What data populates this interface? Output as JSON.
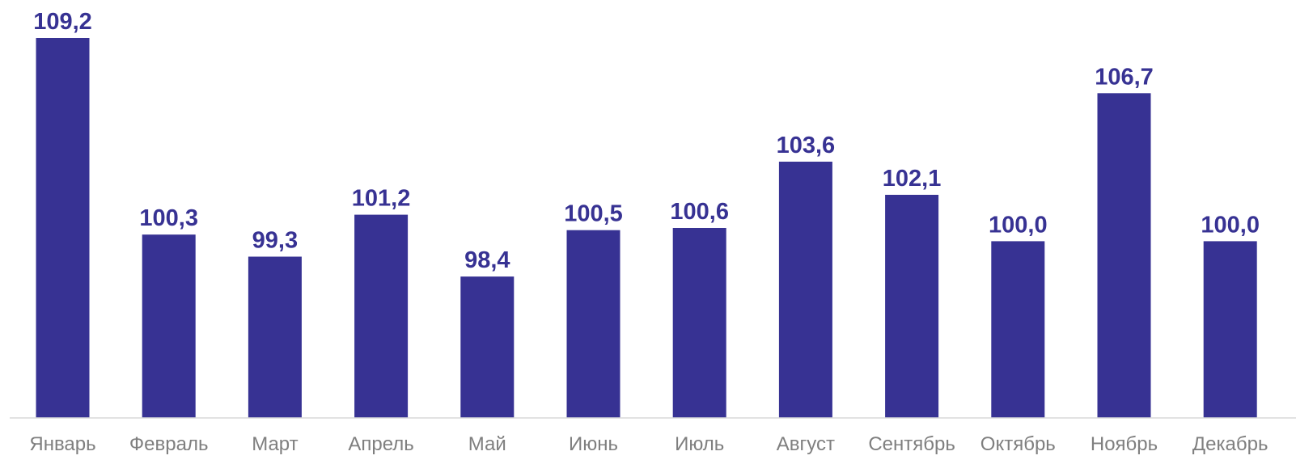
{
  "chart_data": {
    "type": "bar",
    "title": "",
    "xlabel": "",
    "ylabel": "",
    "categories": [
      "Январь",
      "Февраль",
      "Март",
      "Апрель",
      "Май",
      "Июнь",
      "Июль",
      "Август",
      "Сентябрь",
      "Октябрь",
      "Ноябрь",
      "Декабрь"
    ],
    "values": [
      109.2,
      100.3,
      99.3,
      101.2,
      98.4,
      100.5,
      100.6,
      103.6,
      102.1,
      100.0,
      106.7,
      100.0
    ],
    "value_labels": [
      "109,2",
      "100,3",
      "99,3",
      "101,2",
      "98,4",
      "100,5",
      "100,6",
      "103,6",
      "102,1",
      "100,0",
      "106,7",
      "100,0"
    ],
    "ylim": [
      92.0,
      109.2
    ],
    "grid": false,
    "legend": "none",
    "colors": {
      "bar": "#373293",
      "value_label": "#373293",
      "category_label": "#7f7f7f",
      "axis": "#d9d9d9"
    }
  }
}
